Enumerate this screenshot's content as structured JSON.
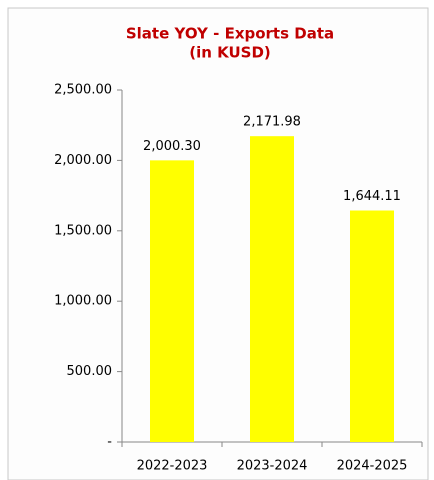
{
  "chart_data": {
    "type": "bar",
    "title": "Slate YOY - Exports Data",
    "subtitle": "(in KUSD)",
    "categories": [
      "2022-2023",
      "2023-2024",
      "2024-2025"
    ],
    "values": [
      2000.3,
      2171.98,
      1644.11
    ],
    "value_labels": [
      "2,000.30",
      "2,171.98",
      "1,644.11"
    ],
    "color": "#ffff00",
    "ylim": [
      0,
      2500
    ],
    "yticks": [
      {
        "value": 0,
        "label": "-"
      },
      {
        "value": 500,
        "label": "500.00"
      },
      {
        "value": 1000,
        "label": "1,000.00"
      },
      {
        "value": 1500,
        "label": "1,500.00"
      },
      {
        "value": 2000,
        "label": "2,000.00"
      },
      {
        "value": 2500,
        "label": "2,500.00"
      }
    ],
    "grid": false
  }
}
